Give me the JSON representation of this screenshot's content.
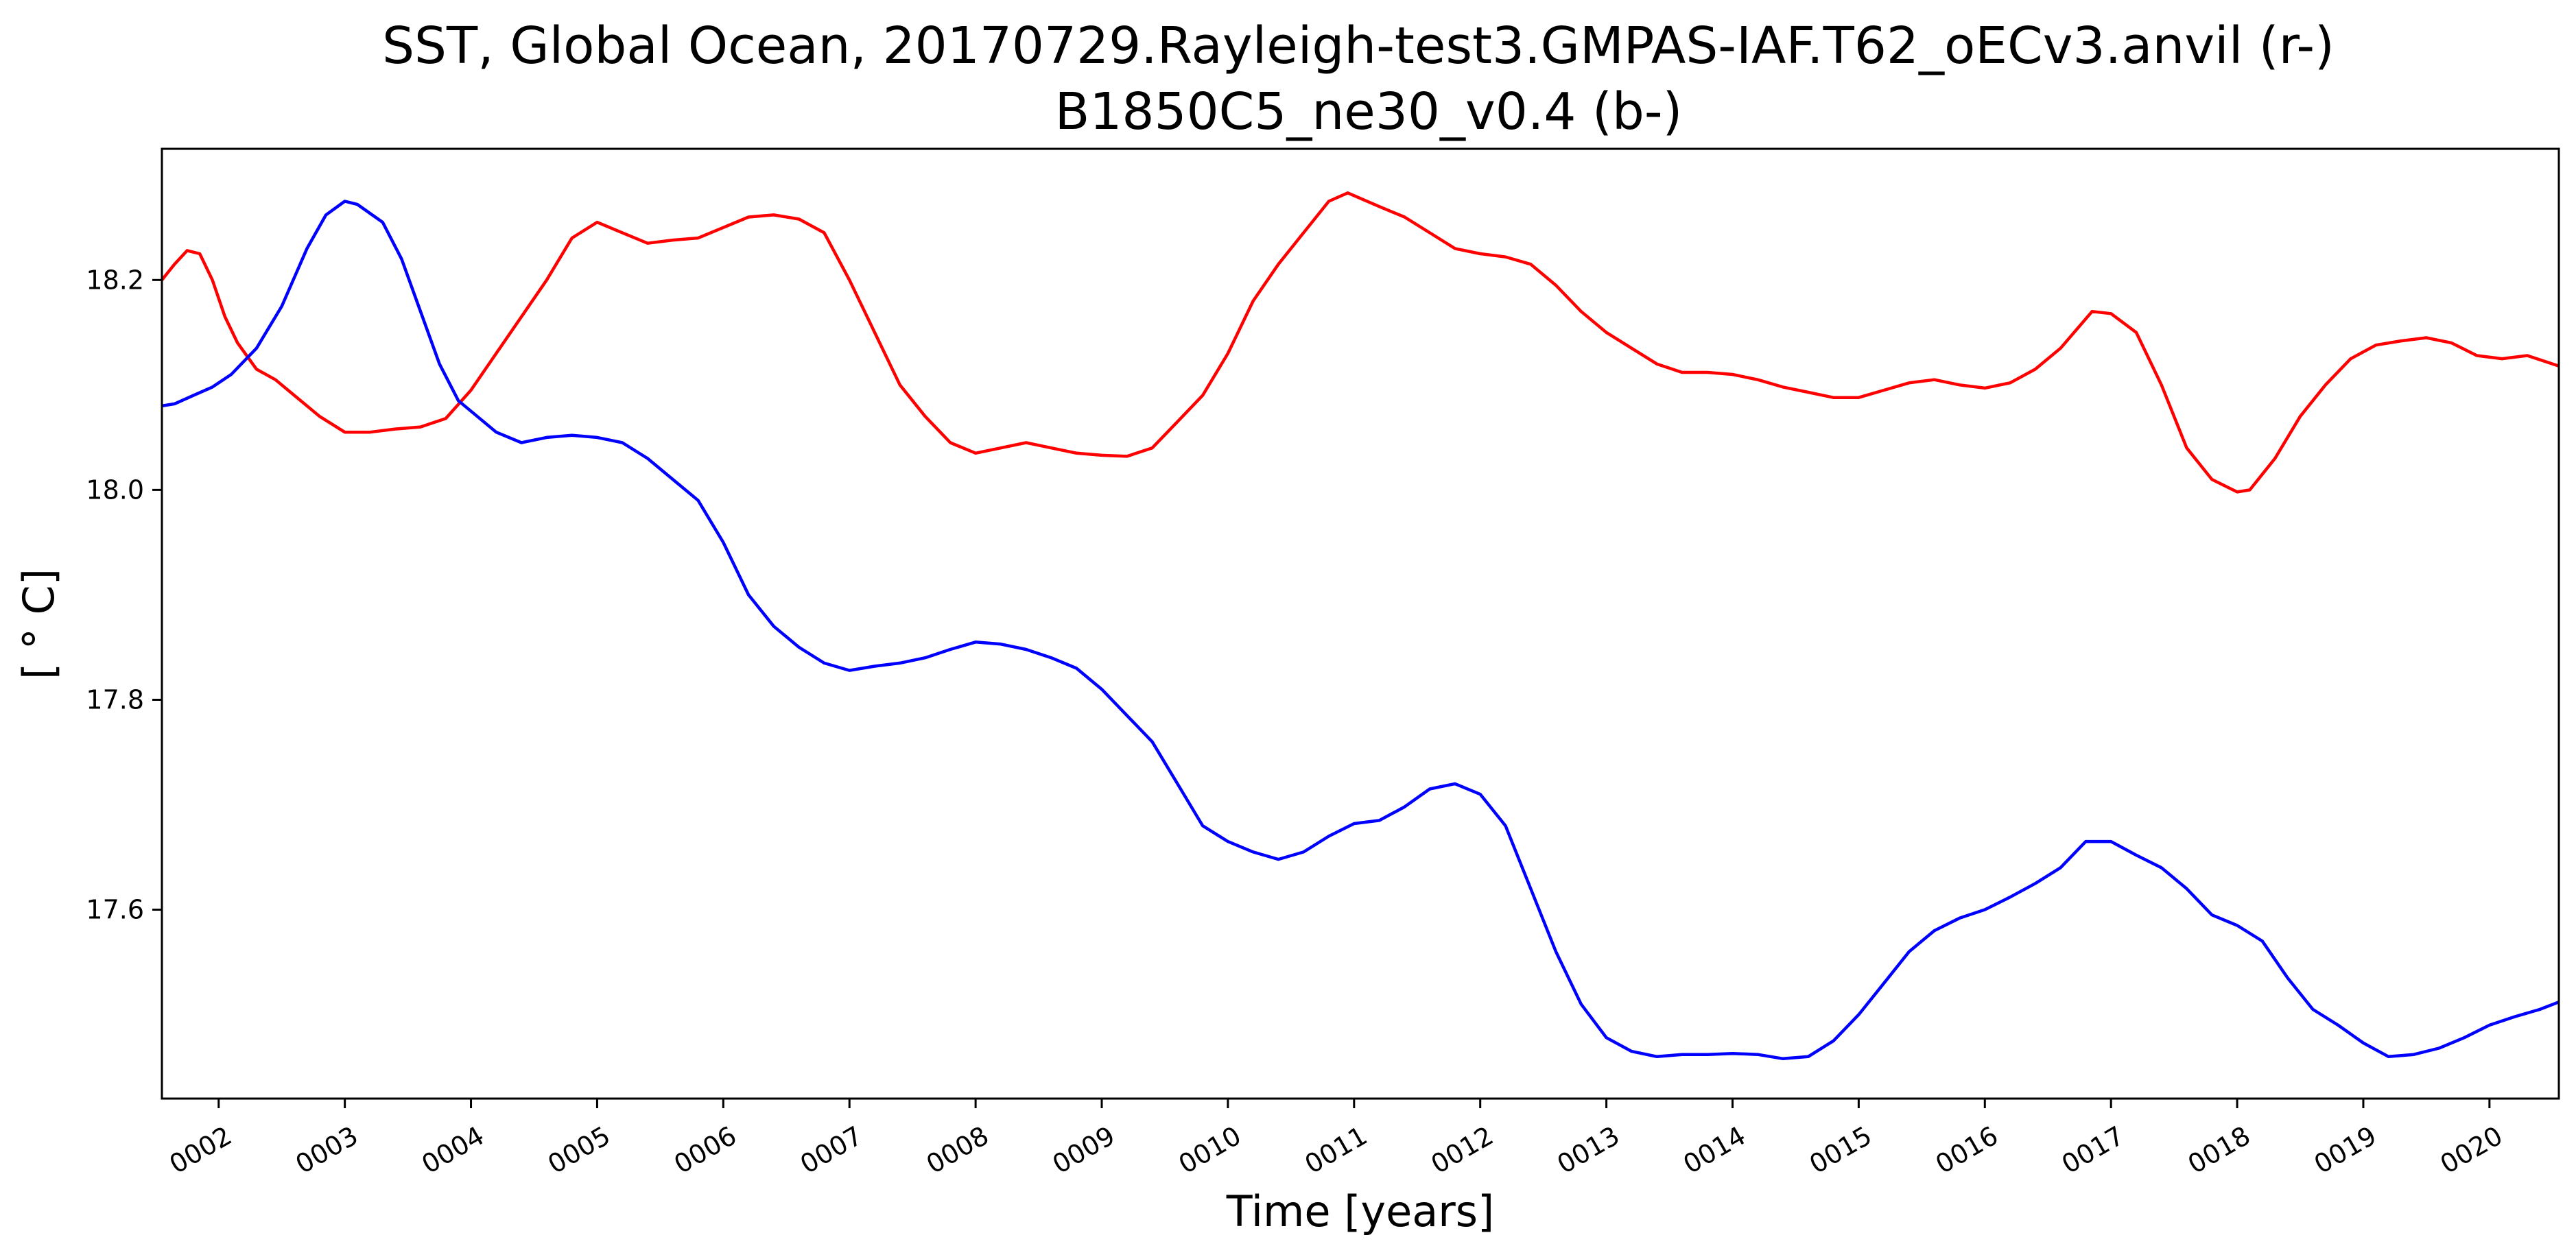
{
  "chart_data": {
    "type": "line",
    "title_line1": "SST, Global Ocean, 20170729.Rayleigh-test3.GMPAS-IAF.T62_oECv3.anvil (r-)",
    "title_line2": "B1850C5_ne30_v0.4 (b-)",
    "xlabel": "Time [years]",
    "ylabel": "[ ° C]",
    "xlim": [
      1.55,
      20.55
    ],
    "ylim": [
      17.42,
      18.325
    ],
    "xticks": [
      {
        "value": 2,
        "label": "0002"
      },
      {
        "value": 3,
        "label": "0003"
      },
      {
        "value": 4,
        "label": "0004"
      },
      {
        "value": 5,
        "label": "0005"
      },
      {
        "value": 6,
        "label": "0006"
      },
      {
        "value": 7,
        "label": "0007"
      },
      {
        "value": 8,
        "label": "0008"
      },
      {
        "value": 9,
        "label": "0009"
      },
      {
        "value": 10,
        "label": "0010"
      },
      {
        "value": 11,
        "label": "0011"
      },
      {
        "value": 12,
        "label": "0012"
      },
      {
        "value": 13,
        "label": "0013"
      },
      {
        "value": 14,
        "label": "0014"
      },
      {
        "value": 15,
        "label": "0015"
      },
      {
        "value": 16,
        "label": "0016"
      },
      {
        "value": 17,
        "label": "0017"
      },
      {
        "value": 18,
        "label": "0018"
      },
      {
        "value": 19,
        "label": "0019"
      },
      {
        "value": 20,
        "label": "0020"
      }
    ],
    "yticks": [
      {
        "value": 17.6,
        "label": "17.6"
      },
      {
        "value": 17.8,
        "label": "17.8"
      },
      {
        "value": 18.0,
        "label": "18.0"
      },
      {
        "value": 18.2,
        "label": "18.2"
      }
    ],
    "grid": false,
    "series": [
      {
        "color": "#ff0000",
        "x": [
          1.55,
          1.65,
          1.75,
          1.85,
          1.95,
          2.05,
          2.15,
          2.3,
          2.45,
          2.6,
          2.8,
          3.0,
          3.2,
          3.4,
          3.6,
          3.8,
          4.0,
          4.2,
          4.4,
          4.6,
          4.8,
          5.0,
          5.2,
          5.4,
          5.6,
          5.8,
          6.0,
          6.2,
          6.4,
          6.6,
          6.8,
          7.0,
          7.2,
          7.4,
          7.6,
          7.8,
          8.0,
          8.2,
          8.4,
          8.6,
          8.8,
          9.0,
          9.2,
          9.4,
          9.6,
          9.8,
          10.0,
          10.2,
          10.4,
          10.6,
          10.8,
          10.95,
          11.2,
          11.4,
          11.6,
          11.8,
          12.0,
          12.2,
          12.4,
          12.6,
          12.8,
          13.0,
          13.2,
          13.4,
          13.6,
          13.8,
          14.0,
          14.2,
          14.4,
          14.6,
          14.8,
          15.0,
          15.2,
          15.4,
          15.6,
          15.8,
          16.0,
          16.2,
          16.4,
          16.6,
          16.85,
          17.0,
          17.2,
          17.4,
          17.6,
          17.8,
          18.0,
          18.1,
          18.3,
          18.5,
          18.7,
          18.9,
          19.1,
          19.3,
          19.5,
          19.7,
          19.9,
          20.1,
          20.3,
          20.55
        ],
        "y": [
          18.2,
          18.215,
          18.228,
          18.225,
          18.2,
          18.165,
          18.14,
          18.115,
          18.105,
          18.09,
          18.07,
          18.055,
          18.055,
          18.058,
          18.06,
          18.068,
          18.095,
          18.13,
          18.165,
          18.2,
          18.24,
          18.255,
          18.245,
          18.235,
          18.238,
          18.24,
          18.25,
          18.26,
          18.262,
          18.258,
          18.245,
          18.2,
          18.15,
          18.1,
          18.07,
          18.045,
          18.035,
          18.04,
          18.045,
          18.04,
          18.035,
          18.033,
          18.032,
          18.04,
          18.065,
          18.09,
          18.13,
          18.18,
          18.215,
          18.245,
          18.275,
          18.283,
          18.27,
          18.26,
          18.245,
          18.23,
          18.225,
          18.222,
          18.215,
          18.195,
          18.17,
          18.15,
          18.135,
          18.12,
          18.112,
          18.112,
          18.11,
          18.105,
          18.098,
          18.093,
          18.088,
          18.088,
          18.095,
          18.102,
          18.105,
          18.1,
          18.097,
          18.102,
          18.115,
          18.135,
          18.17,
          18.168,
          18.15,
          18.1,
          18.04,
          18.01,
          17.998,
          18.0,
          18.03,
          18.07,
          18.1,
          18.125,
          18.138,
          18.142,
          18.145,
          18.14,
          18.128,
          18.125,
          18.128,
          18.118
        ]
      },
      {
        "color": "#0000ff",
        "x": [
          1.55,
          1.65,
          1.8,
          1.95,
          2.1,
          2.3,
          2.5,
          2.7,
          2.85,
          3.0,
          3.1,
          3.3,
          3.45,
          3.6,
          3.75,
          3.9,
          4.05,
          4.2,
          4.4,
          4.6,
          4.8,
          5.0,
          5.2,
          5.4,
          5.6,
          5.8,
          6.0,
          6.2,
          6.4,
          6.6,
          6.8,
          7.0,
          7.2,
          7.4,
          7.6,
          7.8,
          8.0,
          8.2,
          8.4,
          8.6,
          8.8,
          9.0,
          9.2,
          9.4,
          9.6,
          9.8,
          10.0,
          10.2,
          10.4,
          10.6,
          10.8,
          11.0,
          11.2,
          11.4,
          11.6,
          11.8,
          12.0,
          12.2,
          12.4,
          12.6,
          12.8,
          13.0,
          13.2,
          13.4,
          13.6,
          13.8,
          14.0,
          14.2,
          14.4,
          14.6,
          14.8,
          15.0,
          15.2,
          15.4,
          15.6,
          15.8,
          16.0,
          16.2,
          16.4,
          16.6,
          16.8,
          17.0,
          17.2,
          17.4,
          17.6,
          17.8,
          18.0,
          18.2,
          18.4,
          18.6,
          18.8,
          19.0,
          19.2,
          19.4,
          19.6,
          19.8,
          20.0,
          20.2,
          20.4,
          20.55
        ],
        "y": [
          18.08,
          18.082,
          18.09,
          18.098,
          18.11,
          18.135,
          18.175,
          18.23,
          18.262,
          18.275,
          18.272,
          18.255,
          18.22,
          18.17,
          18.12,
          18.085,
          18.07,
          18.055,
          18.045,
          18.05,
          18.052,
          18.05,
          18.045,
          18.03,
          18.01,
          17.99,
          17.95,
          17.9,
          17.87,
          17.85,
          17.835,
          17.828,
          17.832,
          17.835,
          17.84,
          17.848,
          17.855,
          17.853,
          17.848,
          17.84,
          17.83,
          17.81,
          17.785,
          17.76,
          17.72,
          17.68,
          17.665,
          17.655,
          17.648,
          17.655,
          17.67,
          17.682,
          17.685,
          17.698,
          17.715,
          17.72,
          17.71,
          17.68,
          17.62,
          17.56,
          17.51,
          17.478,
          17.465,
          17.46,
          17.462,
          17.462,
          17.463,
          17.462,
          17.458,
          17.46,
          17.475,
          17.5,
          17.53,
          17.56,
          17.58,
          17.592,
          17.6,
          17.612,
          17.625,
          17.64,
          17.665,
          17.665,
          17.652,
          17.64,
          17.62,
          17.595,
          17.585,
          17.57,
          17.535,
          17.505,
          17.49,
          17.473,
          17.46,
          17.462,
          17.468,
          17.478,
          17.49,
          17.498,
          17.505,
          17.512
        ]
      }
    ]
  }
}
